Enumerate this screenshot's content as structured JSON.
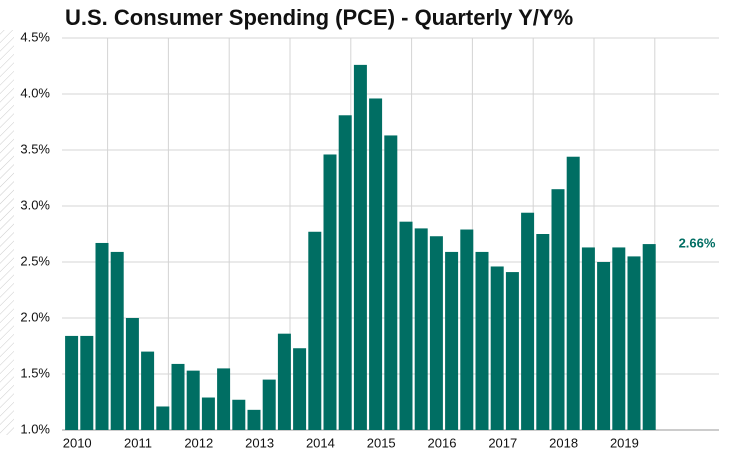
{
  "chart_data": {
    "type": "bar",
    "title": "U.S. Consumer Spending (PCE) - Quarterly Y/Y%",
    "categories": [
      "2010",
      null,
      null,
      null,
      "2011",
      null,
      null,
      null,
      "2012",
      null,
      null,
      null,
      "2013",
      null,
      null,
      null,
      "2014",
      null,
      null,
      null,
      "2015",
      null,
      null,
      null,
      "2016",
      null,
      null,
      null,
      "2017",
      null,
      null,
      null,
      "2018",
      null,
      null,
      null,
      "2019",
      null,
      null
    ],
    "values": [
      1.84,
      1.84,
      2.67,
      2.59,
      2.0,
      1.7,
      1.21,
      1.59,
      1.53,
      1.29,
      1.55,
      1.27,
      1.18,
      1.45,
      1.86,
      1.73,
      2.77,
      3.46,
      3.81,
      4.26,
      3.96,
      3.63,
      2.86,
      2.8,
      2.73,
      2.59,
      2.79,
      2.59,
      2.46,
      2.41,
      2.94,
      2.75,
      3.15,
      3.44,
      2.63,
      2.5,
      2.63,
      2.55,
      2.66
    ],
    "value_labels": [
      null,
      null,
      null,
      null,
      null,
      null,
      null,
      null,
      null,
      null,
      null,
      null,
      null,
      null,
      null,
      null,
      null,
      null,
      null,
      null,
      null,
      null,
      null,
      null,
      null,
      null,
      null,
      null,
      null,
      null,
      null,
      null,
      null,
      null,
      null,
      null,
      null,
      null,
      "2.66%"
    ],
    "color": "#006e63",
    "ylim": [
      1.0,
      4.5
    ],
    "yticks": [
      {
        "value": 1.0,
        "label": "1.0%"
      },
      {
        "value": 1.5,
        "label": "1.5%"
      },
      {
        "value": 2.0,
        "label": "2.0%"
      },
      {
        "value": 2.5,
        "label": "2.5%"
      },
      {
        "value": 3.0,
        "label": "3.0%"
      },
      {
        "value": 3.5,
        "label": "3.5%"
      },
      {
        "value": 4.0,
        "label": "4.0%"
      },
      {
        "value": 4.5,
        "label": "4.5%"
      }
    ],
    "grid": true
  }
}
